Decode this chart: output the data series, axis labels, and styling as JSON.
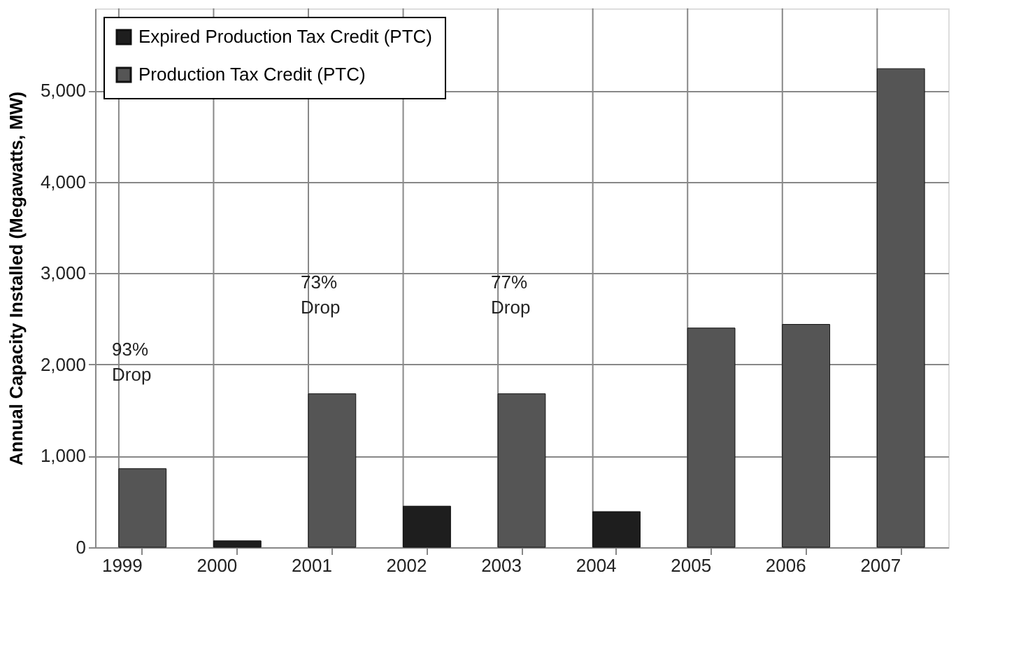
{
  "chart_data": {
    "type": "bar",
    "ylabel": "Annual Capacity Installed (Megawatts, MW)",
    "categories": [
      "1999",
      "2000",
      "2001",
      "2002",
      "2003",
      "2004",
      "2005",
      "2006",
      "2007"
    ],
    "series": [
      {
        "name": "Expired Production Tax Credit (PTC)",
        "color": "#1e1e1e",
        "values": [
          null,
          70,
          null,
          450,
          null,
          390,
          null,
          null,
          null
        ]
      },
      {
        "name": "Production Tax Credit (PTC)",
        "color": "#555555",
        "values": [
          860,
          null,
          1680,
          null,
          1680,
          null,
          2400,
          2440,
          5240
        ]
      }
    ],
    "ylim": [
      0,
      5900
    ],
    "yticks": [
      {
        "value": 0,
        "label": "0"
      },
      {
        "value": 1000,
        "label": "1,000"
      },
      {
        "value": 2000,
        "label": "2,000"
      },
      {
        "value": 3000,
        "label": "3,000"
      },
      {
        "value": 4000,
        "label": "4,000"
      },
      {
        "value": 5000,
        "label": "5,000"
      }
    ],
    "grid": true,
    "legend": "top left",
    "annotations": [
      "93%\nDrop",
      "73%\nDrop",
      "77%\nDrop"
    ]
  }
}
